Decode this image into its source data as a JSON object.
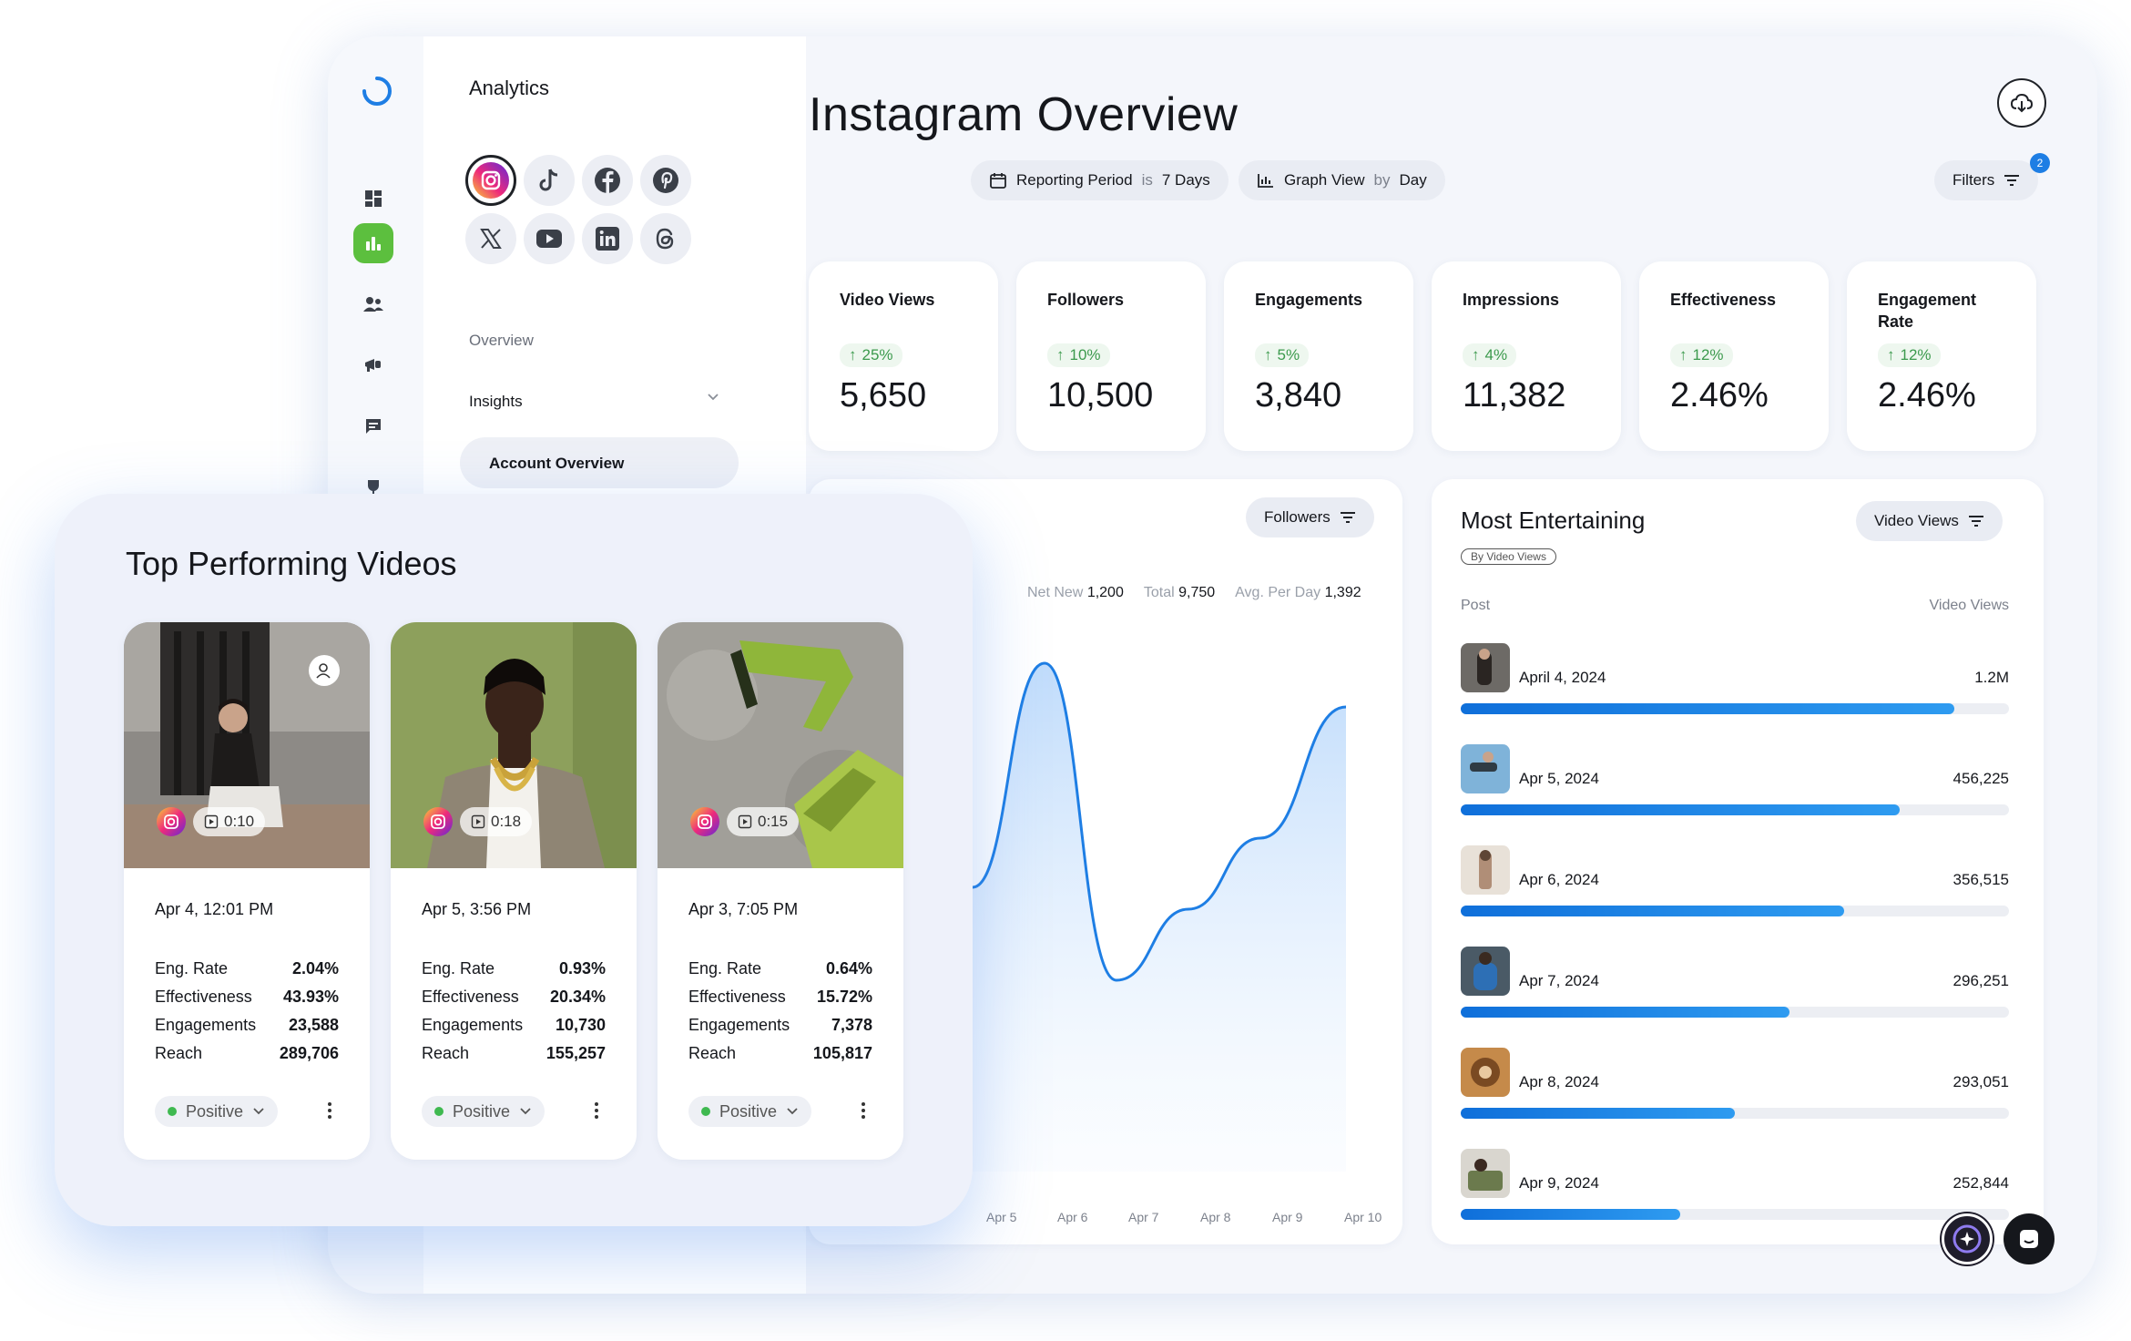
{
  "sidebar": {
    "title": "Analytics",
    "nav": {
      "overview": "Overview",
      "insights": "Insights",
      "account_overview": "Account Overview"
    },
    "icons": [
      "dashboard-icon",
      "analytics-icon",
      "users-icon",
      "megaphone-icon",
      "chat-icon",
      "trophy-icon"
    ],
    "networks": [
      "instagram",
      "tiktok",
      "facebook",
      "pinterest",
      "x",
      "youtube",
      "linkedin",
      "threads"
    ]
  },
  "header": {
    "title": "Instagram Overview",
    "filters": {
      "reporting_label": "Reporting Period",
      "reporting_is": "is",
      "reporting_value": "7 Days",
      "graph_label": "Graph View",
      "graph_by": "by",
      "graph_value": "Day",
      "filters_label": "Filters",
      "filters_count": "2"
    }
  },
  "kpis": [
    {
      "label": "Video Views",
      "delta": "25%",
      "value": "5,650"
    },
    {
      "label": "Followers",
      "delta": "10%",
      "value": "10,500"
    },
    {
      "label": "Engagements",
      "delta": "5%",
      "value": "3,840"
    },
    {
      "label": "Impressions",
      "delta": "4%",
      "value": "11,382"
    },
    {
      "label": "Effectiveness",
      "delta": "12%",
      "value": "2.46%"
    },
    {
      "label": "Engagement Rate",
      "delta": "12%",
      "value": "2.46%"
    }
  ],
  "growth_chart": {
    "filter_label": "Followers",
    "stats": {
      "net_new_label": "Net New",
      "net_new": "1,200",
      "total_label": "Total",
      "total": "9,750",
      "avg_label": "Avg. Per Day",
      "avg": "1,392"
    },
    "x_labels": [
      "Apr 5",
      "Apr 6",
      "Apr 7",
      "Apr 8",
      "Apr 9",
      "Apr 10"
    ]
  },
  "chart_data": {
    "type": "area",
    "x": [
      "Apr 5",
      "Apr 6",
      "Apr 7",
      "Apr 8",
      "Apr 9",
      "Apr 10"
    ],
    "series": [
      {
        "values": [
          0.52,
          0.93,
          0.35,
          0.48,
          0.61,
          0.85
        ]
      }
    ],
    "grid": false,
    "color": "#1e7ee4"
  },
  "most_entertaining": {
    "title": "Most Entertaining",
    "tag": "By Video Views",
    "filter_label": "Video Views",
    "col_post": "Post",
    "col_metric": "Video Views",
    "rows": [
      {
        "date": "April 4, 2024",
        "value": "1.2M",
        "fraction": 0.9
      },
      {
        "date": "Apr 5, 2024",
        "value": "456,225",
        "fraction": 0.8
      },
      {
        "date": "Apr 6, 2024",
        "value": "356,515",
        "fraction": 0.7
      },
      {
        "date": "Apr 7, 2024",
        "value": "296,251",
        "fraction": 0.6
      },
      {
        "date": "Apr 8, 2024",
        "value": "293,051",
        "fraction": 0.5
      },
      {
        "date": "Apr 9, 2024",
        "value": "252,844",
        "fraction": 0.4
      }
    ]
  },
  "top_videos": {
    "title": "Top Performing Videos",
    "stat_labels": {
      "eng_rate": "Eng. Rate",
      "effectiveness": "Effectiveness",
      "engagements": "Engagements",
      "reach": "Reach"
    },
    "videos": [
      {
        "duration": "0:10",
        "date": "Apr 4, 12:01 PM",
        "eng_rate": "2.04%",
        "effectiveness": "43.93%",
        "engagements": "23,588",
        "reach": "289,706",
        "sentiment": "Positive"
      },
      {
        "duration": "0:18",
        "date": "Apr 5, 3:56 PM",
        "eng_rate": "0.93%",
        "effectiveness": "20.34%",
        "engagements": "10,730",
        "reach": "155,257",
        "sentiment": "Positive"
      },
      {
        "duration": "0:15",
        "date": "Apr 3, 7:05 PM",
        "eng_rate": "0.64%",
        "effectiveness": "15.72%",
        "engagements": "7,378",
        "reach": "105,817",
        "sentiment": "Positive"
      }
    ]
  },
  "colors": {
    "accent": "#1e7ee4",
    "active_nav": "#5cbf3e",
    "positive": "#3fb950"
  }
}
